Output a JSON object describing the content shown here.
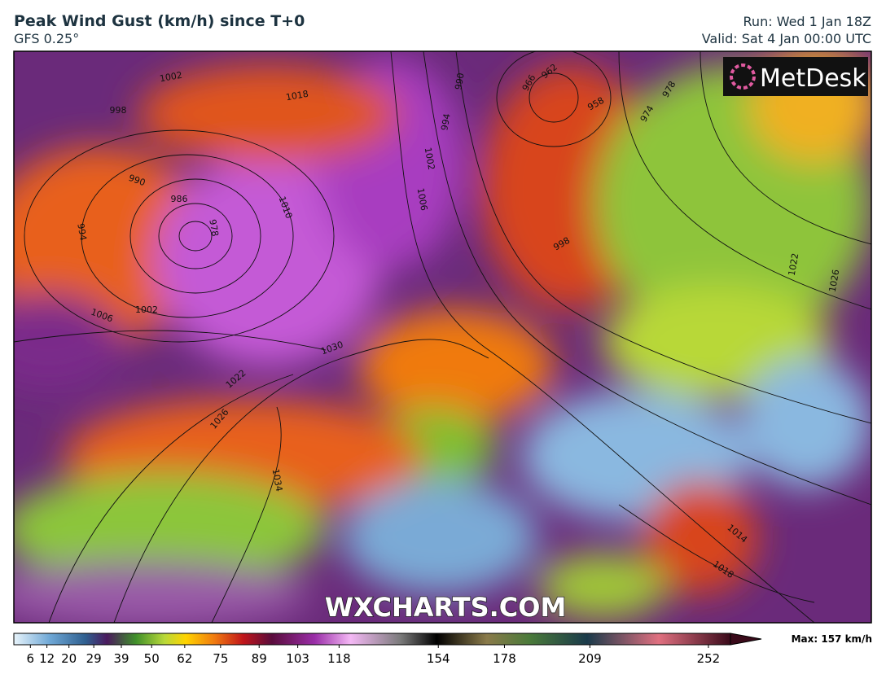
{
  "header": {
    "title": "Peak Wind Gust (km/h) since T+0",
    "model": "GFS 0.25°",
    "run": "Run: Wed 1 Jan 18Z",
    "valid": "Valid: Sat 4 Jan 00:00 UTC"
  },
  "map": {
    "logo": "MetDesk",
    "watermark": "WXCHARTS.COM",
    "isobar_labels": [
      1002,
      998,
      990,
      986,
      994,
      978,
      1002,
      1006,
      1010,
      1018,
      994,
      1002,
      1006,
      990,
      962,
      966,
      958,
      974,
      978,
      998,
      1030,
      1022,
      1026,
      1034,
      1014,
      1018,
      1022,
      1026
    ]
  },
  "colorbar": {
    "range": [
      0,
      260
    ],
    "ticks": [
      6,
      12,
      20,
      29,
      39,
      50,
      62,
      75,
      89,
      103,
      118,
      154,
      178,
      209,
      252
    ],
    "max_label": "Max: 157 km/h"
  }
}
